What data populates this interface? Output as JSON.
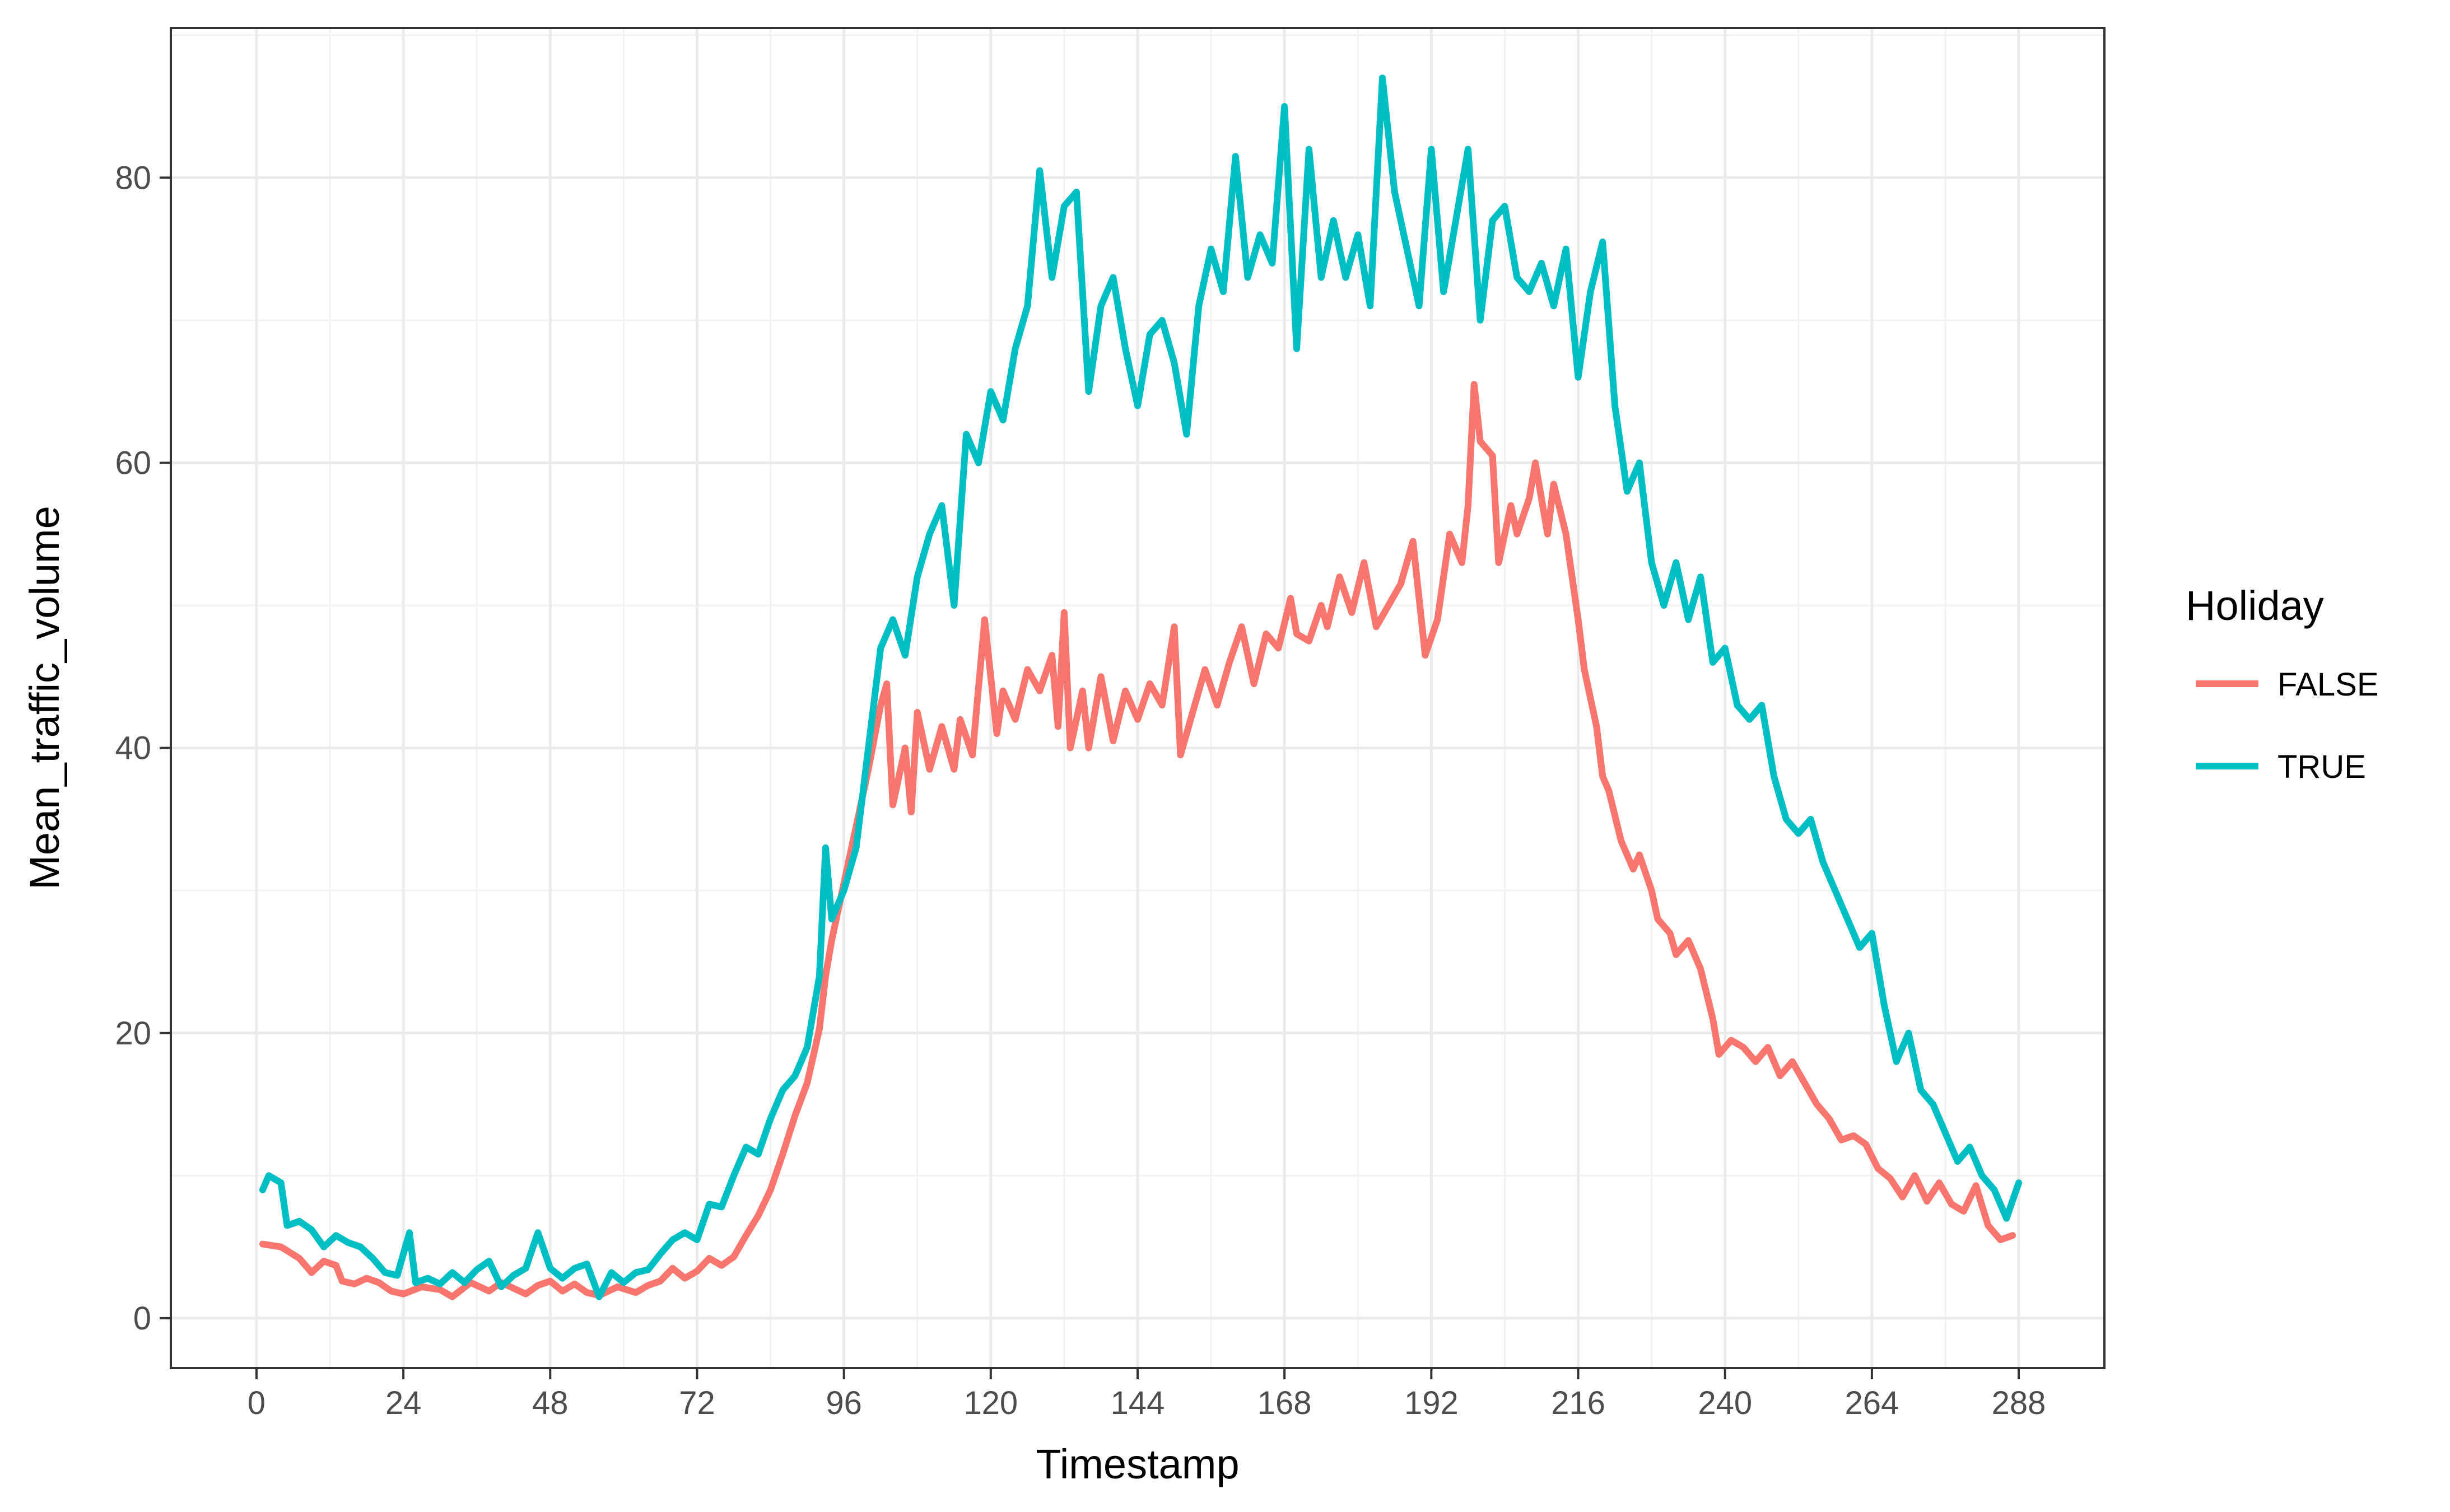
{
  "chart_data": {
    "type": "line",
    "xlabel": "Timestamp",
    "ylabel": "Mean_traffic_volume",
    "xlim": [
      -14,
      302
    ],
    "ylim": [
      -3.5,
      90.5
    ],
    "x_ticks": [
      0,
      24,
      48,
      72,
      96,
      120,
      144,
      168,
      192,
      216,
      240,
      264,
      288
    ],
    "y_ticks": [
      0,
      20,
      40,
      60,
      80
    ],
    "grid": true,
    "legend": {
      "title": "Holiday",
      "position": "right"
    },
    "series": [
      {
        "name": "FALSE",
        "color": "#F8766D",
        "points": [
          [
            1,
            5.2
          ],
          [
            4,
            5
          ],
          [
            7,
            4.2
          ],
          [
            9,
            3.2
          ],
          [
            11,
            4
          ],
          [
            13,
            3.7
          ],
          [
            14,
            2.6
          ],
          [
            16,
            2.4
          ],
          [
            18,
            2.8
          ],
          [
            20,
            2.5
          ],
          [
            22,
            1.9
          ],
          [
            24,
            1.7
          ],
          [
            27,
            2.2
          ],
          [
            30,
            2
          ],
          [
            32,
            1.5
          ],
          [
            35,
            2.5
          ],
          [
            38,
            1.9
          ],
          [
            40,
            2.5
          ],
          [
            42,
            2.1
          ],
          [
            44,
            1.7
          ],
          [
            46,
            2.3
          ],
          [
            48,
            2.6
          ],
          [
            50,
            1.9
          ],
          [
            52,
            2.4
          ],
          [
            54,
            1.8
          ],
          [
            56,
            1.6
          ],
          [
            59,
            2.2
          ],
          [
            62,
            1.8
          ],
          [
            64,
            2.3
          ],
          [
            66,
            2.6
          ],
          [
            68,
            3.5
          ],
          [
            70,
            2.8
          ],
          [
            72,
            3.3
          ],
          [
            74,
            4.2
          ],
          [
            76,
            3.7
          ],
          [
            78,
            4.3
          ],
          [
            80,
            5.8
          ],
          [
            82,
            7.2
          ],
          [
            84,
            9
          ],
          [
            86,
            11.5
          ],
          [
            88,
            14.2
          ],
          [
            90,
            16.5
          ],
          [
            92,
            20.3
          ],
          [
            93,
            24
          ],
          [
            94,
            26.5
          ],
          [
            96,
            30.5
          ],
          [
            98,
            34.5
          ],
          [
            100,
            38.5
          ],
          [
            102,
            43
          ],
          [
            103,
            44.5
          ],
          [
            104,
            36
          ],
          [
            106,
            40
          ],
          [
            107,
            35.5
          ],
          [
            108,
            42.5
          ],
          [
            110,
            38.5
          ],
          [
            112,
            41.5
          ],
          [
            114,
            38.5
          ],
          [
            115,
            42
          ],
          [
            117,
            39.5
          ],
          [
            119,
            49
          ],
          [
            121,
            41
          ],
          [
            122,
            44
          ],
          [
            124,
            42
          ],
          [
            126,
            45.5
          ],
          [
            128,
            44
          ],
          [
            130,
            46.5
          ],
          [
            131,
            41.5
          ],
          [
            132,
            49.5
          ],
          [
            133,
            40
          ],
          [
            135,
            44
          ],
          [
            136,
            40
          ],
          [
            138,
            45
          ],
          [
            140,
            40.5
          ],
          [
            142,
            44
          ],
          [
            144,
            42
          ],
          [
            146,
            44.5
          ],
          [
            148,
            43
          ],
          [
            150,
            48.5
          ],
          [
            151,
            39.5
          ],
          [
            153,
            42.5
          ],
          [
            155,
            45.5
          ],
          [
            157,
            43
          ],
          [
            159,
            46
          ],
          [
            161,
            48.5
          ],
          [
            163,
            44.5
          ],
          [
            165,
            48
          ],
          [
            167,
            47
          ],
          [
            169,
            50.5
          ],
          [
            170,
            48
          ],
          [
            172,
            47.5
          ],
          [
            174,
            50
          ],
          [
            175,
            48.5
          ],
          [
            177,
            52
          ],
          [
            179,
            49.5
          ],
          [
            181,
            53
          ],
          [
            183,
            48.5
          ],
          [
            185,
            50
          ],
          [
            187,
            51.5
          ],
          [
            189,
            54.5
          ],
          [
            191,
            46.5
          ],
          [
            193,
            49
          ],
          [
            195,
            55
          ],
          [
            197,
            53
          ],
          [
            198,
            57
          ],
          [
            199,
            65.5
          ],
          [
            200,
            61.5
          ],
          [
            201,
            61
          ],
          [
            202,
            60.5
          ],
          [
            203,
            53
          ],
          [
            205,
            57
          ],
          [
            206,
            55
          ],
          [
            208,
            57.5
          ],
          [
            209,
            60
          ],
          [
            211,
            55
          ],
          [
            212,
            58.5
          ],
          [
            214,
            55
          ],
          [
            216,
            49
          ],
          [
            217,
            45.5
          ],
          [
            219,
            41.5
          ],
          [
            220,
            38
          ],
          [
            221,
            37
          ],
          [
            223,
            33.5
          ],
          [
            225,
            31.5
          ],
          [
            226,
            32.5
          ],
          [
            228,
            30
          ],
          [
            229,
            28
          ],
          [
            231,
            27
          ],
          [
            232,
            25.5
          ],
          [
            234,
            26.5
          ],
          [
            236,
            24.5
          ],
          [
            238,
            21
          ],
          [
            239,
            18.5
          ],
          [
            241,
            19.5
          ],
          [
            243,
            19
          ],
          [
            245,
            18
          ],
          [
            247,
            19
          ],
          [
            249,
            17
          ],
          [
            251,
            18
          ],
          [
            253,
            16.5
          ],
          [
            255,
            15
          ],
          [
            257,
            14
          ],
          [
            259,
            12.5
          ],
          [
            261,
            12.8
          ],
          [
            263,
            12.2
          ],
          [
            265,
            10.5
          ],
          [
            267,
            9.8
          ],
          [
            269,
            8.5
          ],
          [
            271,
            10
          ],
          [
            273,
            8.2
          ],
          [
            275,
            9.5
          ],
          [
            277,
            8
          ],
          [
            279,
            7.5
          ],
          [
            281,
            9.3
          ],
          [
            283,
            6.5
          ],
          [
            285,
            5.5
          ],
          [
            287,
            5.8
          ]
        ]
      },
      {
        "name": "TRUE",
        "color": "#00BFC4",
        "points": [
          [
            1,
            9
          ],
          [
            2,
            10
          ],
          [
            4,
            9.5
          ],
          [
            5,
            6.5
          ],
          [
            7,
            6.8
          ],
          [
            9,
            6.2
          ],
          [
            11,
            5
          ],
          [
            13,
            5.8
          ],
          [
            15,
            5.3
          ],
          [
            17,
            5
          ],
          [
            19,
            4.2
          ],
          [
            21,
            3.2
          ],
          [
            23,
            3
          ],
          [
            25,
            6
          ],
          [
            26,
            2.5
          ],
          [
            28,
            2.8
          ],
          [
            30,
            2.4
          ],
          [
            32,
            3.2
          ],
          [
            34,
            2.5
          ],
          [
            36,
            3.4
          ],
          [
            38,
            4
          ],
          [
            40,
            2.2
          ],
          [
            42,
            3
          ],
          [
            44,
            3.5
          ],
          [
            46,
            6
          ],
          [
            48,
            3.5
          ],
          [
            50,
            2.8
          ],
          [
            52,
            3.5
          ],
          [
            54,
            3.8
          ],
          [
            56,
            1.5
          ],
          [
            58,
            3.2
          ],
          [
            60,
            2.5
          ],
          [
            62,
            3.2
          ],
          [
            64,
            3.4
          ],
          [
            66,
            4.5
          ],
          [
            68,
            5.5
          ],
          [
            70,
            6
          ],
          [
            72,
            5.5
          ],
          [
            74,
            8
          ],
          [
            76,
            7.8
          ],
          [
            78,
            10
          ],
          [
            80,
            12
          ],
          [
            82,
            11.5
          ],
          [
            84,
            14
          ],
          [
            86,
            16
          ],
          [
            88,
            17
          ],
          [
            90,
            19
          ],
          [
            92,
            24
          ],
          [
            93,
            33
          ],
          [
            94,
            28
          ],
          [
            96,
            30
          ],
          [
            98,
            33
          ],
          [
            100,
            40
          ],
          [
            102,
            47
          ],
          [
            104,
            49
          ],
          [
            106,
            46.5
          ],
          [
            108,
            52
          ],
          [
            110,
            55
          ],
          [
            112,
            57
          ],
          [
            114,
            50
          ],
          [
            116,
            62
          ],
          [
            118,
            60
          ],
          [
            120,
            65
          ],
          [
            122,
            63
          ],
          [
            124,
            68
          ],
          [
            126,
            71
          ],
          [
            128,
            80.5
          ],
          [
            130,
            73
          ],
          [
            132,
            78
          ],
          [
            134,
            79
          ],
          [
            136,
            65
          ],
          [
            138,
            71
          ],
          [
            140,
            73
          ],
          [
            142,
            68
          ],
          [
            144,
            64
          ],
          [
            146,
            69
          ],
          [
            148,
            70
          ],
          [
            150,
            67
          ],
          [
            152,
            62
          ],
          [
            154,
            71
          ],
          [
            156,
            75
          ],
          [
            158,
            72
          ],
          [
            160,
            81.5
          ],
          [
            162,
            73
          ],
          [
            164,
            76
          ],
          [
            166,
            74
          ],
          [
            168,
            85
          ],
          [
            170,
            68
          ],
          [
            172,
            82
          ],
          [
            174,
            73
          ],
          [
            176,
            77
          ],
          [
            178,
            73
          ],
          [
            180,
            76
          ],
          [
            182,
            71
          ],
          [
            184,
            87
          ],
          [
            186,
            79
          ],
          [
            188,
            75
          ],
          [
            190,
            71
          ],
          [
            192,
            82
          ],
          [
            194,
            72
          ],
          [
            196,
            77
          ],
          [
            198,
            82
          ],
          [
            200,
            70
          ],
          [
            202,
            77
          ],
          [
            204,
            78
          ],
          [
            206,
            73
          ],
          [
            208,
            72
          ],
          [
            210,
            74
          ],
          [
            212,
            71
          ],
          [
            214,
            75
          ],
          [
            216,
            66
          ],
          [
            218,
            72
          ],
          [
            220,
            75.5
          ],
          [
            222,
            64
          ],
          [
            224,
            58
          ],
          [
            226,
            60
          ],
          [
            228,
            53
          ],
          [
            230,
            50
          ],
          [
            232,
            53
          ],
          [
            234,
            49
          ],
          [
            236,
            52
          ],
          [
            238,
            46
          ],
          [
            240,
            47
          ],
          [
            242,
            43
          ],
          [
            244,
            42
          ],
          [
            246,
            43
          ],
          [
            248,
            38
          ],
          [
            250,
            35
          ],
          [
            252,
            34
          ],
          [
            254,
            35
          ],
          [
            256,
            32
          ],
          [
            258,
            30
          ],
          [
            260,
            28
          ],
          [
            262,
            26
          ],
          [
            264,
            27
          ],
          [
            266,
            22
          ],
          [
            268,
            18
          ],
          [
            270,
            20
          ],
          [
            272,
            16
          ],
          [
            274,
            15
          ],
          [
            276,
            13
          ],
          [
            278,
            11
          ],
          [
            280,
            12
          ],
          [
            282,
            10
          ],
          [
            284,
            9
          ],
          [
            286,
            7
          ],
          [
            288,
            9.5
          ]
        ]
      }
    ]
  }
}
